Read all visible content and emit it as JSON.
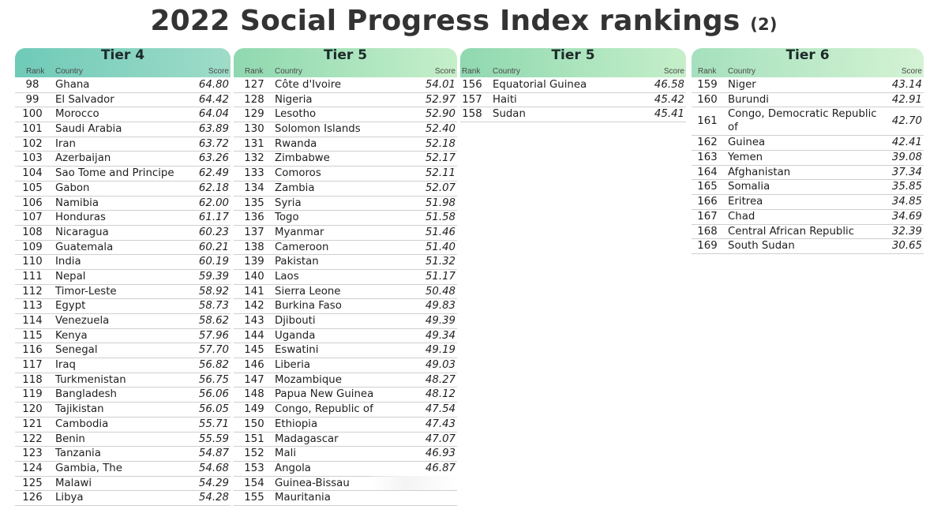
{
  "title": "2022 Social Progress Index rankings",
  "title_suffix": "(2)",
  "headers": {
    "rank": "Rank",
    "country": "Country",
    "score": "Score"
  },
  "columns": [
    {
      "tier": "Tier 4",
      "rows": [
        {
          "rank": "98",
          "country": "Ghana",
          "score": "64.80"
        },
        {
          "rank": "99",
          "country": "El Salvador",
          "score": "64.42"
        },
        {
          "rank": "100",
          "country": "Morocco",
          "score": "64.04"
        },
        {
          "rank": "101",
          "country": "Saudi Arabia",
          "score": "63.89"
        },
        {
          "rank": "102",
          "country": "Iran",
          "score": "63.72"
        },
        {
          "rank": "103",
          "country": "Azerbaijan",
          "score": "63.26"
        },
        {
          "rank": "104",
          "country": "Sao Tome and Principe",
          "score": "62.49"
        },
        {
          "rank": "105",
          "country": "Gabon",
          "score": "62.18"
        },
        {
          "rank": "106",
          "country": "Namibia",
          "score": "62.00"
        },
        {
          "rank": "107",
          "country": "Honduras",
          "score": "61.17"
        },
        {
          "rank": "108",
          "country": "Nicaragua",
          "score": "60.23"
        },
        {
          "rank": "109",
          "country": "Guatemala",
          "score": "60.21"
        },
        {
          "rank": "110",
          "country": "India",
          "score": "60.19"
        },
        {
          "rank": "111",
          "country": "Nepal",
          "score": "59.39"
        },
        {
          "rank": "112",
          "country": "Timor-Leste",
          "score": "58.92"
        },
        {
          "rank": "113",
          "country": "Egypt",
          "score": "58.73"
        },
        {
          "rank": "114",
          "country": "Venezuela",
          "score": "58.62"
        },
        {
          "rank": "115",
          "country": "Kenya",
          "score": "57.96"
        },
        {
          "rank": "116",
          "country": "Senegal",
          "score": "57.70"
        },
        {
          "rank": "117",
          "country": "Iraq",
          "score": "56.82"
        },
        {
          "rank": "118",
          "country": "Turkmenistan",
          "score": "56.75"
        },
        {
          "rank": "119",
          "country": "Bangladesh",
          "score": "56.06"
        },
        {
          "rank": "120",
          "country": "Tajikistan",
          "score": "56.05"
        },
        {
          "rank": "121",
          "country": "Cambodia",
          "score": "55.71"
        },
        {
          "rank": "122",
          "country": "Benin",
          "score": "55.59"
        },
        {
          "rank": "123",
          "country": "Tanzania",
          "score": "54.87"
        },
        {
          "rank": "124",
          "country": "Gambia, The",
          "score": "54.68"
        },
        {
          "rank": "125",
          "country": "Malawi",
          "score": "54.29"
        },
        {
          "rank": "126",
          "country": "Libya",
          "score": "54.28"
        }
      ]
    },
    {
      "tier": "Tier 5",
      "rows": [
        {
          "rank": "127",
          "country": "Côte d'Ivoire",
          "score": "54.01"
        },
        {
          "rank": "128",
          "country": "Nigeria",
          "score": "52.97"
        },
        {
          "rank": "129",
          "country": "Lesotho",
          "score": "52.90"
        },
        {
          "rank": "130",
          "country": "Solomon Islands",
          "score": "52.40"
        },
        {
          "rank": "131",
          "country": "Rwanda",
          "score": "52.18"
        },
        {
          "rank": "132",
          "country": "Zimbabwe",
          "score": "52.17"
        },
        {
          "rank": "133",
          "country": "Comoros",
          "score": "52.11"
        },
        {
          "rank": "134",
          "country": "Zambia",
          "score": "52.07"
        },
        {
          "rank": "135",
          "country": "Syria",
          "score": "51.98"
        },
        {
          "rank": "136",
          "country": "Togo",
          "score": "51.58"
        },
        {
          "rank": "137",
          "country": "Myanmar",
          "score": "51.46"
        },
        {
          "rank": "138",
          "country": "Cameroon",
          "score": "51.40"
        },
        {
          "rank": "139",
          "country": "Pakistan",
          "score": "51.32"
        },
        {
          "rank": "140",
          "country": "Laos",
          "score": "51.17"
        },
        {
          "rank": "141",
          "country": "Sierra Leone",
          "score": "50.48"
        },
        {
          "rank": "142",
          "country": "Burkina Faso",
          "score": "49.83"
        },
        {
          "rank": "143",
          "country": "Djibouti",
          "score": "49.39"
        },
        {
          "rank": "144",
          "country": "Uganda",
          "score": "49.34"
        },
        {
          "rank": "145",
          "country": "Eswatini",
          "score": "49.19"
        },
        {
          "rank": "146",
          "country": "Liberia",
          "score": "49.03"
        },
        {
          "rank": "147",
          "country": "Mozambique",
          "score": "48.27"
        },
        {
          "rank": "148",
          "country": "Papua New Guinea",
          "score": "48.12"
        },
        {
          "rank": "149",
          "country": "Congo, Republic of",
          "score": "47.54"
        },
        {
          "rank": "150",
          "country": "Ethiopia",
          "score": "47.43"
        },
        {
          "rank": "151",
          "country": "Madagascar",
          "score": "47.07"
        },
        {
          "rank": "152",
          "country": "Mali",
          "score": "46.93"
        },
        {
          "rank": "153",
          "country": "Angola",
          "score": "46.87"
        },
        {
          "rank": "154",
          "country": "Guinea-Bissau",
          "score": ""
        },
        {
          "rank": "155",
          "country": "Mauritania",
          "score": ""
        }
      ]
    },
    {
      "tier": "Tier 5",
      "rows": [
        {
          "rank": "156",
          "country": "Equatorial Guinea",
          "score": "46.58"
        },
        {
          "rank": "157",
          "country": "Haiti",
          "score": "45.42"
        },
        {
          "rank": "158",
          "country": "Sudan",
          "score": "45.41"
        }
      ]
    },
    {
      "tier": "Tier 6",
      "rows": [
        {
          "rank": "159",
          "country": "Niger",
          "score": "43.14"
        },
        {
          "rank": "160",
          "country": "Burundi",
          "score": "42.91"
        },
        {
          "rank": "161",
          "country": "Congo, Democratic Republic of",
          "score": "42.70"
        },
        {
          "rank": "162",
          "country": "Guinea",
          "score": "42.41"
        },
        {
          "rank": "163",
          "country": "Yemen",
          "score": "39.08"
        },
        {
          "rank": "164",
          "country": "Afghanistan",
          "score": "37.34"
        },
        {
          "rank": "165",
          "country": "Somalia",
          "score": "35.85"
        },
        {
          "rank": "166",
          "country": "Eritrea",
          "score": "34.85"
        },
        {
          "rank": "167",
          "country": "Chad",
          "score": "34.69"
        },
        {
          "rank": "168",
          "country": "Central African Republic",
          "score": "32.39"
        },
        {
          "rank": "169",
          "country": "South Sudan",
          "score": "30.65"
        }
      ]
    }
  ]
}
